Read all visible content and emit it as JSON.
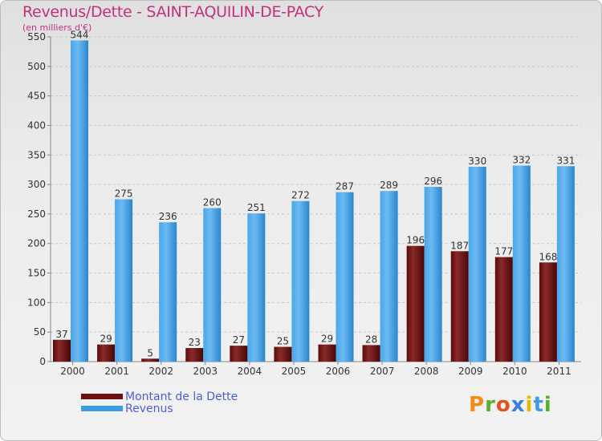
{
  "chart_data": {
    "type": "bar",
    "title": "Revenus/Dette - SAINT-AQUILIN-DE-PACY",
    "subtitle": "(en milliers d'€)",
    "categories": [
      "2000",
      "2001",
      "2002",
      "2003",
      "2004",
      "2005",
      "2006",
      "2007",
      "2008",
      "2009",
      "2010",
      "2011"
    ],
    "series": [
      {
        "name": "Montant de la Dette",
        "color": "#6e0f0f",
        "values": [
          37,
          29,
          5,
          23,
          27,
          25,
          29,
          28,
          196,
          187,
          177,
          168
        ]
      },
      {
        "name": "Revenus",
        "color": "#3d9be0",
        "values": [
          544,
          275,
          236,
          260,
          251,
          272,
          287,
          289,
          296,
          330,
          332,
          331
        ]
      }
    ],
    "ylim": [
      0,
      550
    ],
    "yticks": [
      0,
      50,
      100,
      150,
      200,
      250,
      300,
      350,
      400,
      450,
      500,
      550
    ],
    "grid": true,
    "legend_position": "bottom-left"
  },
  "logo": {
    "text": "Proxiti"
  }
}
